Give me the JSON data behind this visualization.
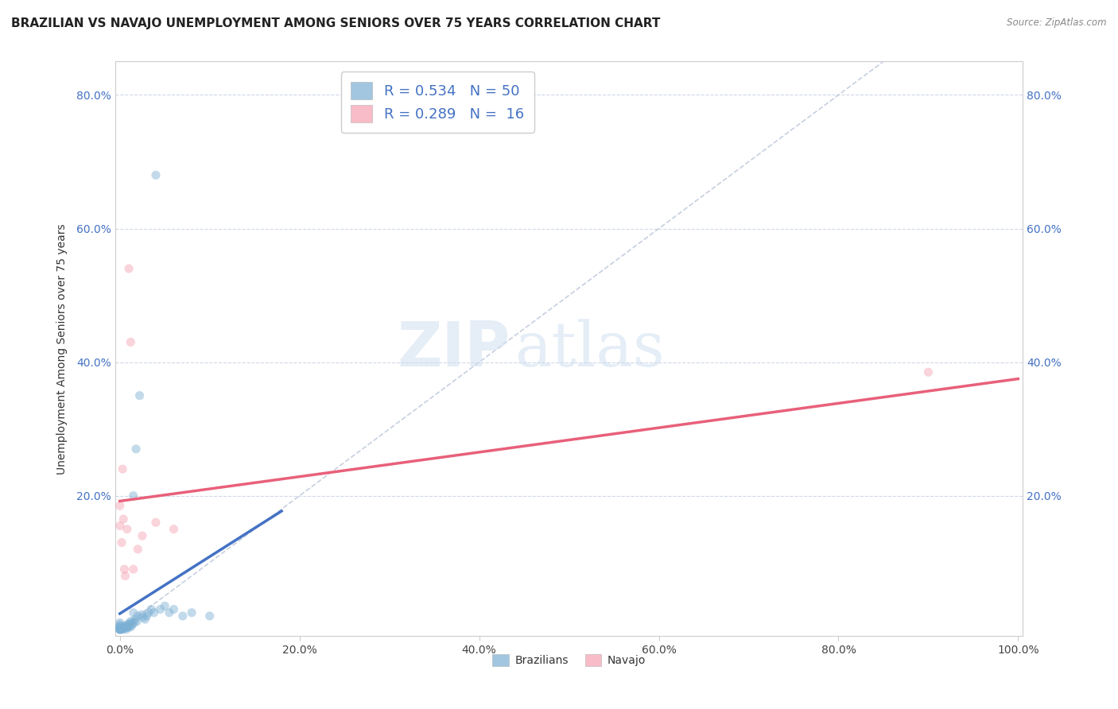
{
  "title": "BRAZILIAN VS NAVAJO UNEMPLOYMENT AMONG SENIORS OVER 75 YEARS CORRELATION CHART",
  "source": "Source: ZipAtlas.com",
  "ylabel": "Unemployment Among Seniors over 75 years",
  "xlabel": "",
  "xlim": [
    -0.005,
    1.005
  ],
  "ylim": [
    -0.01,
    0.85
  ],
  "xticks": [
    0.0,
    0.2,
    0.4,
    0.6,
    0.8,
    1.0
  ],
  "xtick_labels": [
    "0.0%",
    "20.0%",
    "40.0%",
    "60.0%",
    "80.0%",
    "100.0%"
  ],
  "yticks": [
    0.2,
    0.4,
    0.6,
    0.8
  ],
  "ytick_labels": [
    "20.0%",
    "40.0%",
    "60.0%",
    "80.0%"
  ],
  "legend_bottom_labels": [
    "Brazilians",
    "Navajo"
  ],
  "brazilian_color": "#7bafd4",
  "navajo_color": "#f4a0b0",
  "trend_brazilian_color": "#4472c4",
  "trend_navajo_color": "#e8607a",
  "diagonal_color": "#b8c4d8",
  "watermark_zip": "ZIP",
  "watermark_atlas": "atlas",
  "R_brazilian": 0.534,
  "N_brazilian": 50,
  "R_navajo": 0.289,
  "N_navajo": 16,
  "background_color": "#ffffff",
  "grid_color": "#d0d8e8",
  "title_fontsize": 11,
  "axis_fontsize": 10,
  "tick_fontsize": 10,
  "marker_size": 65,
  "marker_alpha": 0.45,
  "brazilian_x": [
    0.0,
    0.0,
    0.0,
    0.0,
    0.0,
    0.0,
    0.0,
    0.0,
    0.0,
    0.0,
    0.002,
    0.003,
    0.004,
    0.005,
    0.005,
    0.006,
    0.007,
    0.008,
    0.008,
    0.009,
    0.01,
    0.01,
    0.011,
    0.012,
    0.012,
    0.013,
    0.014,
    0.015,
    0.015,
    0.016,
    0.017,
    0.018,
    0.019,
    0.02,
    0.022,
    0.024,
    0.026,
    0.028,
    0.03,
    0.032,
    0.035,
    0.038,
    0.04,
    0.045,
    0.05,
    0.055,
    0.06,
    0.07,
    0.08,
    0.1
  ],
  "brazilian_y": [
    0.0,
    0.0,
    0.0,
    0.0,
    0.0,
    0.002,
    0.003,
    0.005,
    0.007,
    0.01,
    0.0,
    0.0,
    0.002,
    0.003,
    0.005,
    0.002,
    0.0,
    0.003,
    0.007,
    0.004,
    0.005,
    0.008,
    0.003,
    0.01,
    0.012,
    0.005,
    0.008,
    0.025,
    0.2,
    0.01,
    0.015,
    0.27,
    0.012,
    0.02,
    0.35,
    0.022,
    0.018,
    0.015,
    0.02,
    0.025,
    0.03,
    0.025,
    0.68,
    0.03,
    0.035,
    0.025,
    0.03,
    0.02,
    0.025,
    0.02
  ],
  "navajo_x": [
    0.0,
    0.0,
    0.002,
    0.003,
    0.004,
    0.005,
    0.006,
    0.008,
    0.01,
    0.012,
    0.015,
    0.02,
    0.025,
    0.04,
    0.06,
    0.9
  ],
  "navajo_y": [
    0.155,
    0.185,
    0.13,
    0.24,
    0.165,
    0.09,
    0.08,
    0.15,
    0.54,
    0.43,
    0.09,
    0.12,
    0.14,
    0.16,
    0.15,
    0.385
  ],
  "braz_trend_x0": 0.0,
  "braz_trend_x1": 0.18,
  "nav_trend_x0": 0.0,
  "nav_trend_x1": 1.0,
  "nav_trend_y0": 0.192,
  "nav_trend_y1": 0.375
}
